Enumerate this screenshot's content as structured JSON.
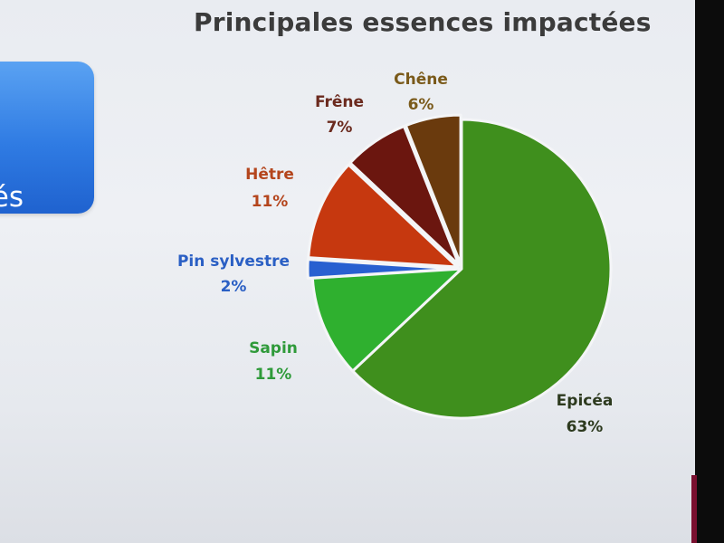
{
  "slide": {
    "title": "Principales essences impactées",
    "side_card_text": "ltés"
  },
  "chart_data": {
    "type": "pie",
    "title": "",
    "slices": [
      {
        "name": "Epicéa",
        "label": "63%",
        "value": 63,
        "color": "#3f8f1d",
        "label_color": "#2d3a1e",
        "exploded": false
      },
      {
        "name": "Sapin",
        "label": "11%",
        "value": 11,
        "color": "#2fb02f",
        "label_color": "#2f9a3a",
        "exploded": false
      },
      {
        "name": "Pin sylvestre",
        "label": "2%",
        "value": 2,
        "color": "#2860d0",
        "label_color": "#2a5fc4",
        "exploded": true
      },
      {
        "name": "Hêtre",
        "label": "11%",
        "value": 11,
        "color": "#c6380f",
        "label_color": "#b4451c",
        "exploded": true
      },
      {
        "name": "Frêne",
        "label": "7%",
        "value": 7,
        "color": "#6b160f",
        "label_color": "#6b2a1e",
        "exploded": true
      },
      {
        "name": "Chêne",
        "label": "6%",
        "value": 6,
        "color": "#6a3a0d",
        "label_color": "#7a5a1a",
        "exploded": true
      }
    ],
    "legend": "none",
    "start": "top, clockwise"
  }
}
